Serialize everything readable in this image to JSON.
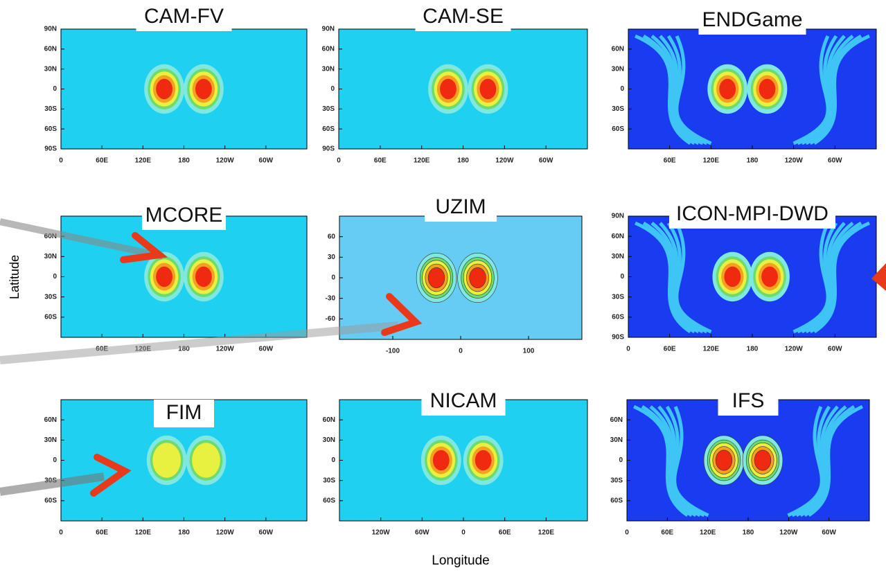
{
  "panels": [
    {
      "title": "CAM-FV",
      "yticks": [
        "90N",
        "60N",
        "30N",
        "0",
        "30S",
        "60S",
        "90S"
      ],
      "xticks": [
        "0",
        "60E",
        "120E",
        "180",
        "120W",
        "60W"
      ]
    },
    {
      "title": "CAM-SE",
      "yticks": [
        "90N",
        "60N",
        "30N",
        "0",
        "30S",
        "60S",
        "90S"
      ],
      "xticks": [
        "0",
        "60E",
        "120E",
        "180",
        "120W",
        "60W"
      ]
    },
    {
      "title": "ENDGame",
      "yticks": [
        "60N",
        "30N",
        "0",
        "30S",
        "60S"
      ],
      "xticks": [
        "60E",
        "120E",
        "180",
        "120W",
        "60W"
      ]
    },
    {
      "title": "MCORE",
      "yticks": [
        "60N",
        "30N",
        "0",
        "30S",
        "60S"
      ],
      "xticks": [
        "60E",
        "120E",
        "180",
        "120W",
        "60W"
      ]
    },
    {
      "title": "UZIM",
      "yticks": [
        "60",
        "30",
        "0",
        "-30",
        "-60"
      ],
      "xticks": [
        "-100",
        "0",
        "100"
      ]
    },
    {
      "title": "ICON-MPI-DWD",
      "yticks": [
        "90N",
        "60N",
        "30N",
        "0",
        "30S",
        "60S",
        "90S"
      ],
      "xticks": [
        "0",
        "60E",
        "120E",
        "180",
        "120W",
        "60W"
      ]
    },
    {
      "title": "FIM",
      "yticks": [
        "60N",
        "30N",
        "0",
        "30S",
        "60S"
      ],
      "xticks": [
        "0",
        "60E",
        "120E",
        "180",
        "120W",
        "60W"
      ]
    },
    {
      "title": "NICAM",
      "yticks": [
        "60N",
        "30N",
        "0",
        "30S",
        "60S"
      ],
      "xticks": [
        "120W",
        "60W",
        "0",
        "60E",
        "120E"
      ]
    },
    {
      "title": "IFS",
      "yticks": [
        "60N",
        "30N",
        "0",
        "30S",
        "60S"
      ],
      "xticks": [
        "0",
        "60E",
        "120E",
        "180",
        "120W",
        "60W"
      ]
    }
  ],
  "ylabel": "Latitude",
  "xlabel": "Longitude"
}
